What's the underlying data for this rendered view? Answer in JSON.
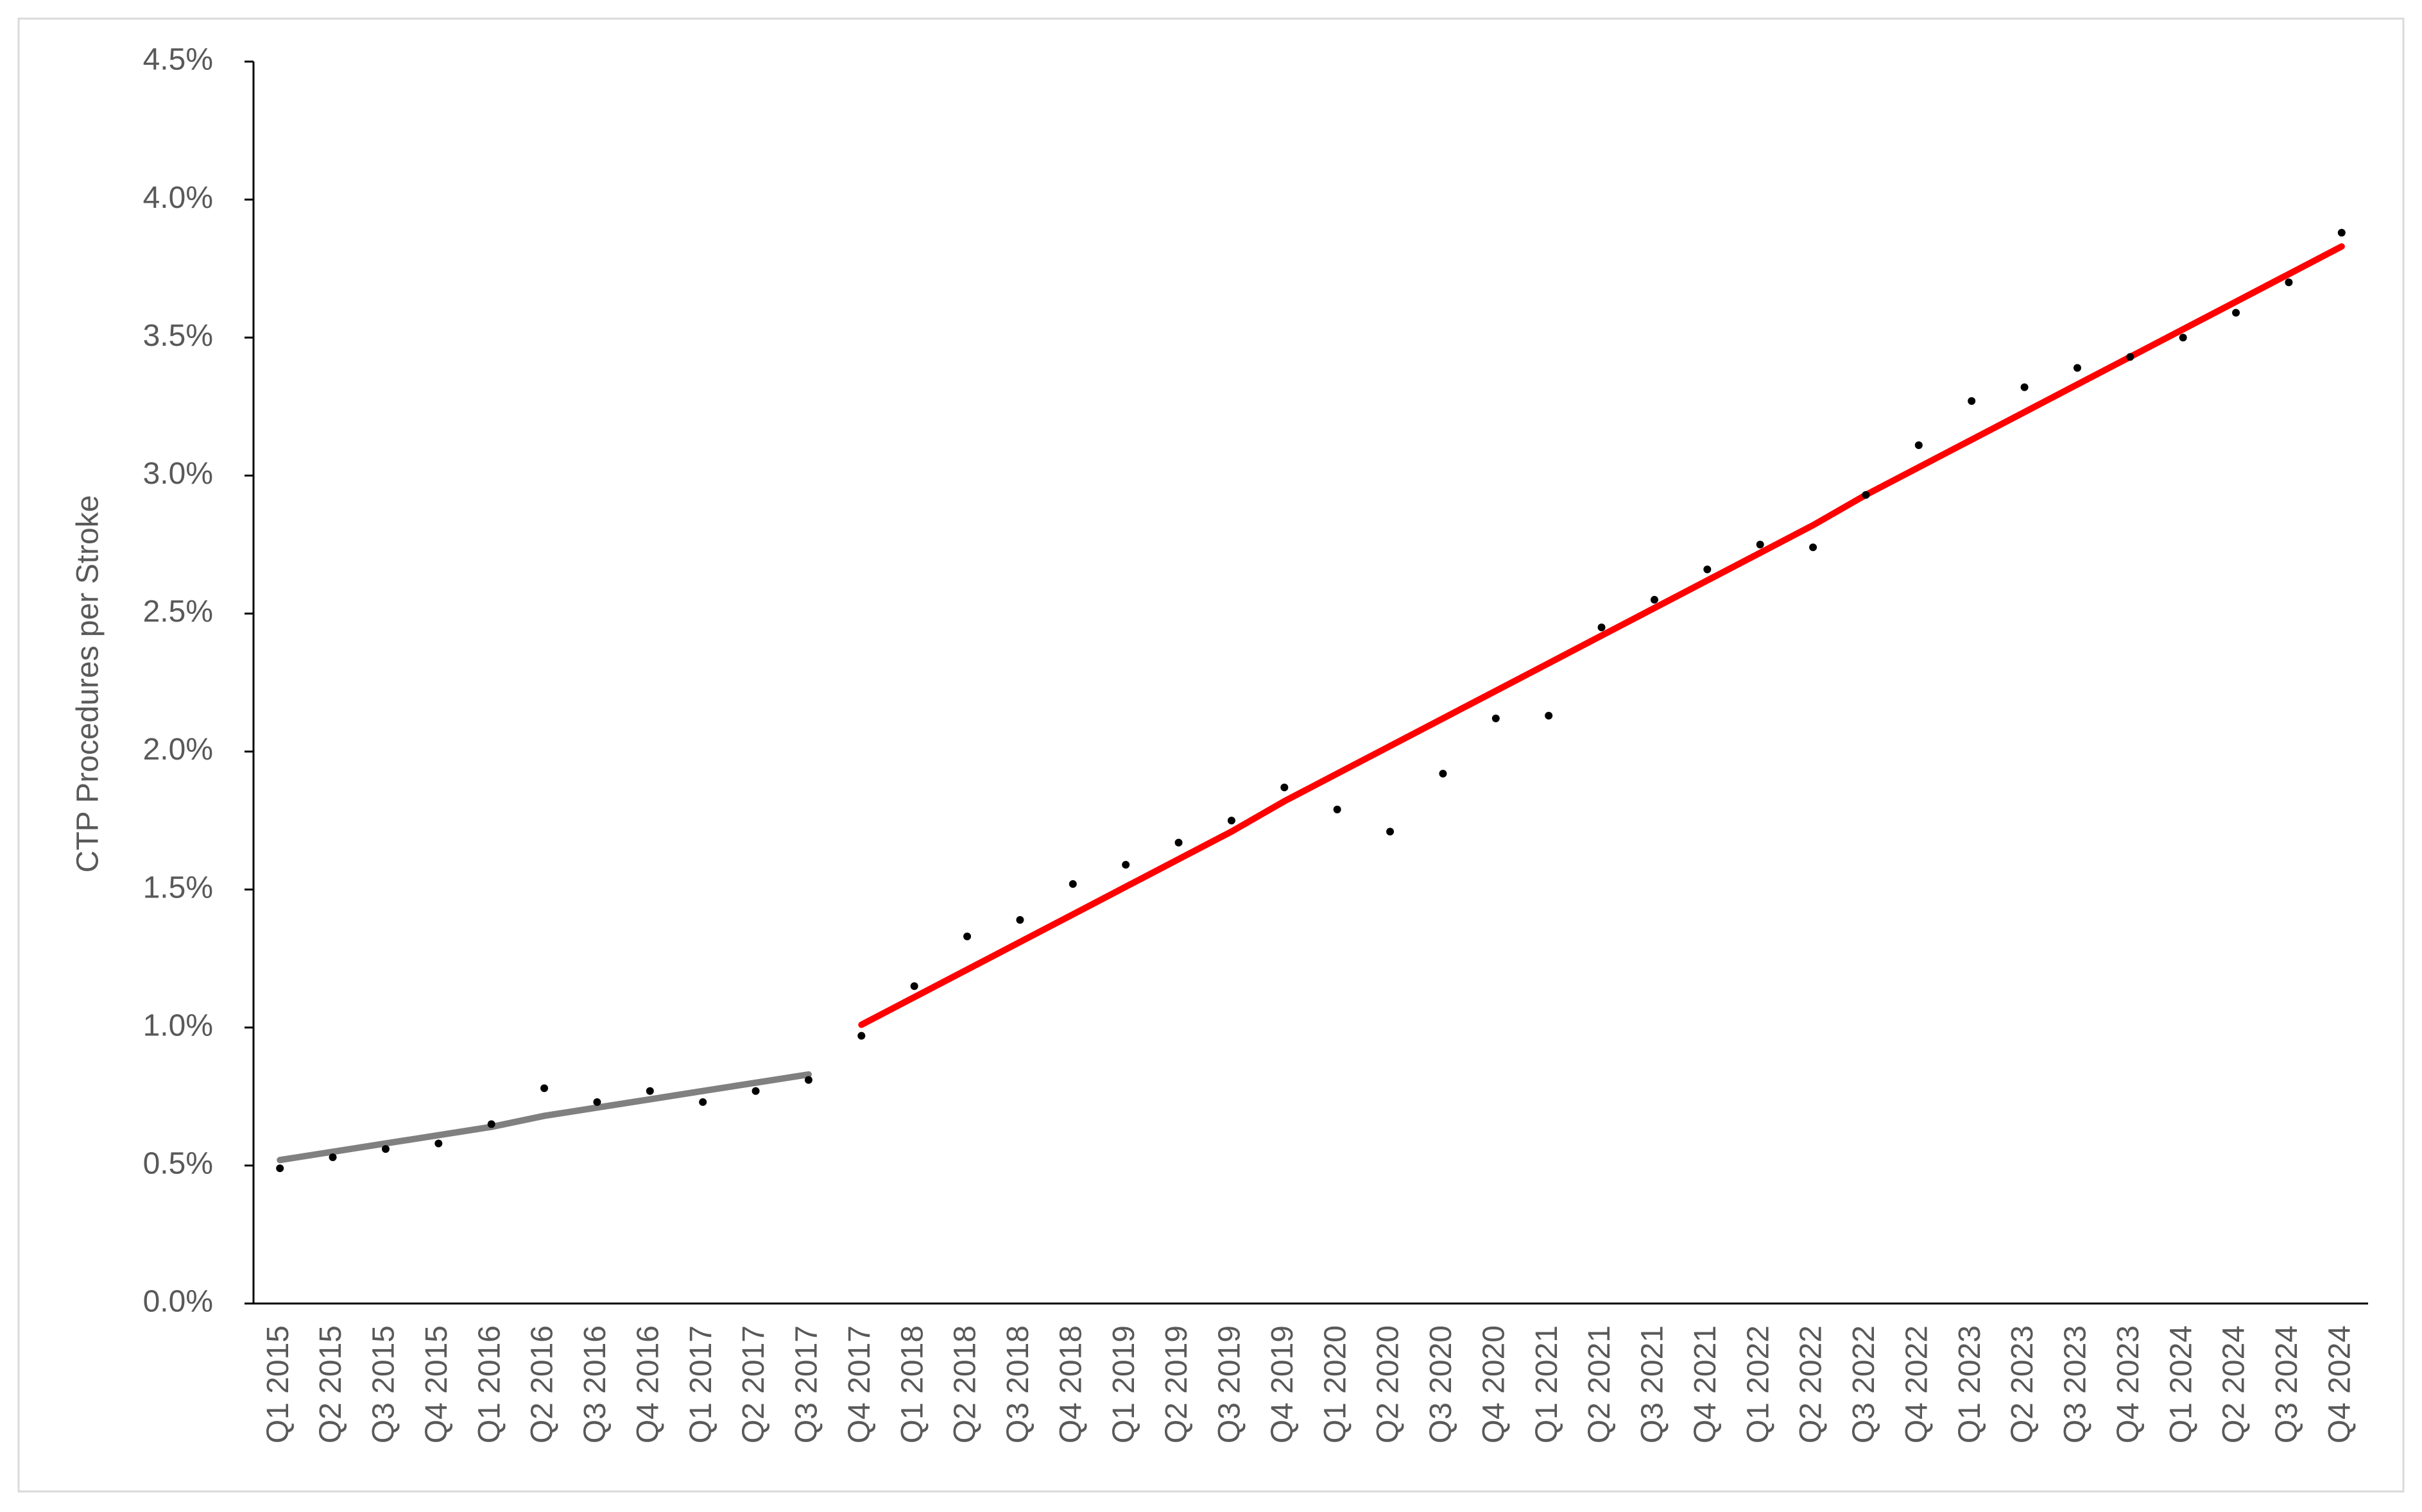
{
  "chart_data": {
    "type": "line",
    "y_label": "CTP Procedures per Stroke",
    "categories": [
      "Q1 2015",
      "Q2 2015",
      "Q3 2015",
      "Q4 2015",
      "Q1 2016",
      "Q2 2016",
      "Q3 2016",
      "Q4 2016",
      "Q1 2017",
      "Q2 2017",
      "Q3 2017",
      "Q4 2017",
      "Q1 2018",
      "Q2 2018",
      "Q3 2018",
      "Q4 2018",
      "Q1 2019",
      "Q2 2019",
      "Q3 2019",
      "Q4 2019",
      "Q1 2020",
      "Q2 2020",
      "Q3 2020",
      "Q4 2020",
      "Q1 2021",
      "Q2 2021",
      "Q3 2021",
      "Q4 2021",
      "Q1 2022",
      "Q2 2022",
      "Q3 2022",
      "Q4 2022",
      "Q1 2023",
      "Q2 2023",
      "Q3 2023",
      "Q4 2023",
      "Q1 2024",
      "Q2 2024",
      "Q3 2024",
      "Q4 2024"
    ],
    "series": [
      {
        "mode": "markers",
        "color": "#000000",
        "values": [
          0.49,
          0.53,
          0.56,
          0.58,
          0.65,
          0.78,
          0.73,
          0.77,
          0.73,
          0.77,
          0.81,
          0.97,
          1.15,
          1.33,
          1.39,
          1.52,
          1.59,
          1.67,
          1.75,
          1.87,
          1.79,
          1.71,
          1.92,
          2.12,
          2.13,
          2.45,
          2.55,
          2.66,
          2.75,
          2.74,
          2.93,
          3.11,
          3.27,
          3.32,
          3.39,
          3.43,
          3.5,
          3.59,
          3.7,
          3.88
        ]
      },
      {
        "mode": "line",
        "color": "#808080",
        "values": [
          0.52,
          0.55,
          0.58,
          0.61,
          0.64,
          0.68,
          0.71,
          0.74,
          0.77,
          0.8,
          0.83,
          null,
          null,
          null,
          null,
          null,
          null,
          null,
          null,
          null,
          null,
          null,
          null,
          null,
          null,
          null,
          null,
          null,
          null,
          null,
          null,
          null,
          null,
          null,
          null,
          null,
          null,
          null,
          null,
          null
        ]
      },
      {
        "mode": "line",
        "color": "#ff0000",
        "values": [
          null,
          null,
          null,
          null,
          null,
          null,
          null,
          null,
          null,
          null,
          null,
          1.01,
          1.11,
          1.21,
          1.31,
          1.41,
          1.51,
          1.61,
          1.71,
          1.82,
          1.92,
          2.02,
          2.12,
          2.22,
          2.32,
          2.42,
          2.52,
          2.62,
          2.72,
          2.82,
          2.93,
          3.03,
          3.13,
          3.23,
          3.33,
          3.43,
          3.53,
          3.63,
          3.73,
          3.83
        ]
      }
    ],
    "ylim": [
      0,
      4.5
    ],
    "yticks": [
      {
        "value": 0,
        "label": "0.0%"
      },
      {
        "value": 0.5,
        "label": "0.5%"
      },
      {
        "value": 1,
        "label": "1.0%"
      },
      {
        "value": 1.5,
        "label": "1.5%"
      },
      {
        "value": 2,
        "label": "2.0%"
      },
      {
        "value": 2.5,
        "label": "2.5%"
      },
      {
        "value": 3,
        "label": "3.0%"
      },
      {
        "value": 3.5,
        "label": "3.5%"
      },
      {
        "value": 4,
        "label": "4.0%"
      },
      {
        "value": 4.5,
        "label": "4.5%"
      }
    ],
    "grid": false
  }
}
